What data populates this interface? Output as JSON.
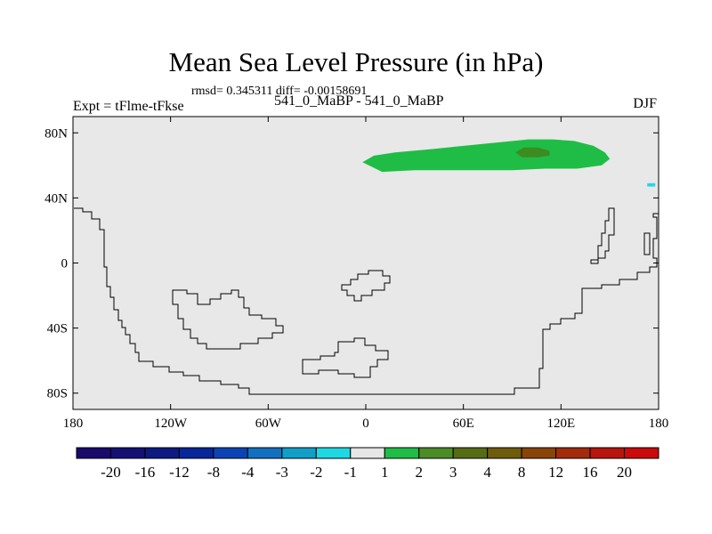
{
  "header": {
    "title": "Mean Sea Level Pressure (in hPa)",
    "stats": "rmsd= 0.345311 diff= -0.00158691",
    "expt": "Expt = tFlme-tFkse",
    "runs": "541_0_MaBP - 541_0_MaBP",
    "season": "DJF"
  },
  "map": {
    "lon_range": [
      -180,
      180
    ],
    "lat_range": [
      -90,
      90
    ],
    "background_color": "#e8e8e8",
    "coast_color": "#000000",
    "lat_ticks": [
      {
        "value": 80,
        "label": "80N"
      },
      {
        "value": 40,
        "label": "40N"
      },
      {
        "value": 0,
        "label": "0"
      },
      {
        "value": -40,
        "label": "40S"
      },
      {
        "value": -80,
        "label": "80S"
      }
    ],
    "lon_ticks": [
      {
        "value": -180,
        "label": "180"
      },
      {
        "value": -120,
        "label": "120W"
      },
      {
        "value": -60,
        "label": "60W"
      },
      {
        "value": 0,
        "label": "0"
      },
      {
        "value": 60,
        "label": "60E"
      },
      {
        "value": 120,
        "label": "120E"
      },
      {
        "value": 180,
        "label": "180"
      }
    ],
    "anomalies": [
      {
        "name": "positive-anomaly-1to2",
        "color": "#1fbd45",
        "lon": [
          -2,
          5,
          18,
          40,
          60,
          80,
          100,
          115,
          128,
          140,
          147,
          150,
          145,
          130,
          110,
          90,
          70,
          50,
          30,
          10,
          -2
        ],
        "lat": [
          62,
          66,
          68,
          70,
          72,
          74,
          76,
          76,
          75,
          72,
          68,
          64,
          60,
          58,
          58,
          57,
          57,
          57,
          57,
          56,
          62
        ]
      },
      {
        "name": "positive-anomaly-2to3",
        "color": "#3d8c21",
        "lon": [
          92,
          97,
          106,
          113,
          113,
          106,
          96,
          92
        ],
        "lat": [
          68,
          71,
          71,
          69,
          66,
          65,
          65,
          68
        ]
      },
      {
        "name": "negative-anomaly-minus1",
        "color": "#24d8e8",
        "lon": [
          173,
          178,
          178,
          173
        ],
        "lat": [
          49,
          49,
          47,
          47
        ]
      }
    ]
  },
  "colorbar": {
    "labels": [
      "-20",
      "-16",
      "-12",
      "-8",
      "-4",
      "-3",
      "-2",
      "-1",
      "1",
      "2",
      "3",
      "4",
      "8",
      "12",
      "16",
      "20"
    ],
    "colors": [
      "#1a0a6b",
      "#141074",
      "#0c1a82",
      "#08259a",
      "#0a44b4",
      "#1270c0",
      "#119ec8",
      "#1ed8e4",
      "#e6e6e6",
      "#1fbd45",
      "#4c8c26",
      "#556c14",
      "#6e5c0c",
      "#8a440a",
      "#a42a0c",
      "#b8150f",
      "#cc0a0a"
    ]
  }
}
